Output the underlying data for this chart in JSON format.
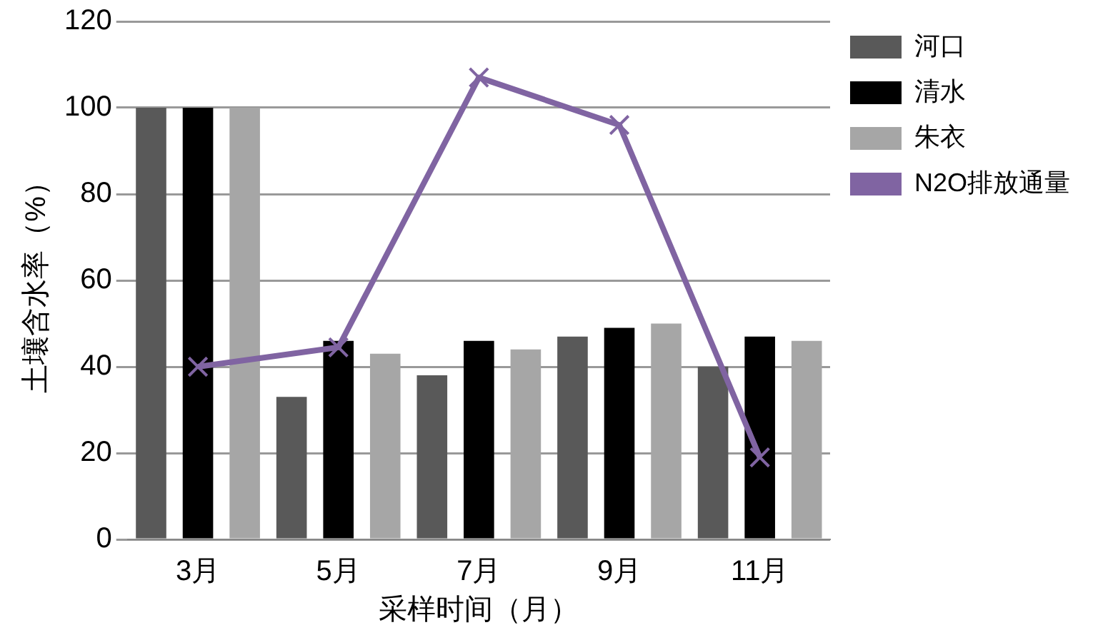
{
  "chart_data": {
    "type": "bar",
    "xlabel": "采样时间（月）",
    "ylabel": "土壤含水率（%）",
    "categories": [
      "3月",
      "5月",
      "7月",
      "9月",
      "11月"
    ],
    "series": [
      {
        "name": "河口",
        "color": "#595959",
        "values": [
          100,
          33,
          38,
          47,
          40
        ]
      },
      {
        "name": "清水",
        "color": "#000000",
        "values": [
          100,
          46,
          46,
          49,
          47
        ]
      },
      {
        "name": "朱衣",
        "color": "#a6a6a6",
        "values": [
          100,
          43,
          44,
          50,
          46
        ]
      },
      {
        "name": "N2O排放通量",
        "type": "line",
        "color": "#8064a2",
        "values": [
          40,
          44.5,
          107,
          96,
          19
        ],
        "marker": "cross",
        "line_style": "solid"
      }
    ],
    "ylim": [
      0,
      120
    ],
    "yticks": [
      0,
      20,
      40,
      60,
      80,
      100,
      120
    ],
    "grid": "y",
    "legend": "top right"
  }
}
